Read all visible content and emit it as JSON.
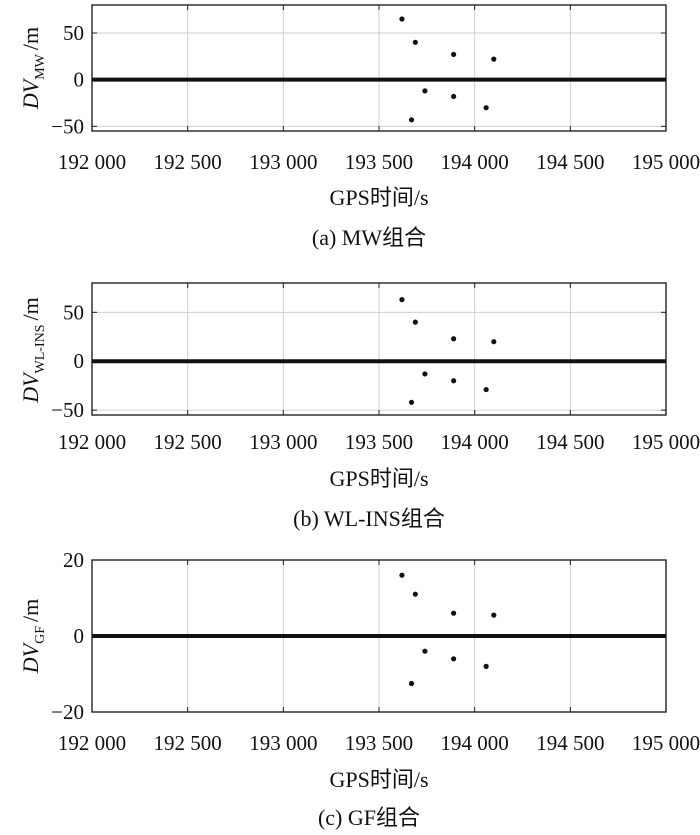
{
  "chart_data": [
    {
      "type": "scatter",
      "caption": "(a) MW组合",
      "xlabel": "GPS时间/s",
      "ylabel_main": "DV",
      "ylabel_sub": "MW",
      "ylabel_unit": "/m",
      "xlim": [
        192000,
        195000
      ],
      "ylim": [
        -55,
        80
      ],
      "xticks": [
        192000,
        192500,
        193000,
        193500,
        194000,
        194500,
        195000
      ],
      "xtick_labels": [
        "192 000",
        "192 500",
        "193 000",
        "193 500",
        "194 000",
        "194 500",
        "195 000"
      ],
      "yticks": [
        50,
        0,
        -50
      ],
      "ytick_labels": [
        "50",
        "0",
        "−50"
      ],
      "grid": true,
      "baseline": {
        "x_range": [
          192000,
          195000
        ],
        "y": 0
      },
      "points": [
        {
          "x": 193620,
          "y": 65
        },
        {
          "x": 193690,
          "y": 40
        },
        {
          "x": 193890,
          "y": 27
        },
        {
          "x": 194100,
          "y": 22
        },
        {
          "x": 193740,
          "y": -12
        },
        {
          "x": 193890,
          "y": -18
        },
        {
          "x": 194060,
          "y": -30
        },
        {
          "x": 193670,
          "y": -43
        }
      ]
    },
    {
      "type": "scatter",
      "caption": "(b) WL-INS组合",
      "xlabel": "GPS时间/s",
      "ylabel_main": "DV",
      "ylabel_sub": "WL-INS",
      "ylabel_unit": "/m",
      "xlim": [
        192000,
        195000
      ],
      "ylim": [
        -55,
        80
      ],
      "xticks": [
        192000,
        192500,
        193000,
        193500,
        194000,
        194500,
        195000
      ],
      "xtick_labels": [
        "192 000",
        "192 500",
        "193 000",
        "193 500",
        "194 000",
        "194 500",
        "195 000"
      ],
      "yticks": [
        50,
        0,
        -50
      ],
      "ytick_labels": [
        "50",
        "0",
        "−50"
      ],
      "grid": true,
      "baseline": {
        "x_range": [
          192000,
          195000
        ],
        "y": 0
      },
      "points": [
        {
          "x": 193620,
          "y": 63
        },
        {
          "x": 193690,
          "y": 40
        },
        {
          "x": 193890,
          "y": 23
        },
        {
          "x": 194100,
          "y": 20
        },
        {
          "x": 193740,
          "y": -13
        },
        {
          "x": 193890,
          "y": -20
        },
        {
          "x": 194060,
          "y": -29
        },
        {
          "x": 193670,
          "y": -42
        }
      ]
    },
    {
      "type": "scatter",
      "caption": "(c) GF组合",
      "xlabel": "GPS时间/s",
      "ylabel_main": "DV",
      "ylabel_sub": "GF",
      "ylabel_unit": "/m",
      "xlim": [
        192000,
        195000
      ],
      "ylim": [
        -20,
        20
      ],
      "xticks": [
        192000,
        192500,
        193000,
        193500,
        194000,
        194500,
        195000
      ],
      "xtick_labels": [
        "192 000",
        "192 500",
        "193 000",
        "193 500",
        "194 000",
        "194 500",
        "195 000"
      ],
      "yticks": [
        20,
        0,
        -20
      ],
      "ytick_labels": [
        "20",
        "0",
        "−20"
      ],
      "grid": true,
      "baseline": {
        "x_range": [
          192000,
          195000
        ],
        "y": 0
      },
      "points": [
        {
          "x": 193620,
          "y": 16
        },
        {
          "x": 193690,
          "y": 11
        },
        {
          "x": 193890,
          "y": 6
        },
        {
          "x": 194100,
          "y": 5.5
        },
        {
          "x": 193740,
          "y": -4
        },
        {
          "x": 193890,
          "y": -6
        },
        {
          "x": 194060,
          "y": -8
        },
        {
          "x": 193670,
          "y": -12.5
        }
      ]
    }
  ]
}
